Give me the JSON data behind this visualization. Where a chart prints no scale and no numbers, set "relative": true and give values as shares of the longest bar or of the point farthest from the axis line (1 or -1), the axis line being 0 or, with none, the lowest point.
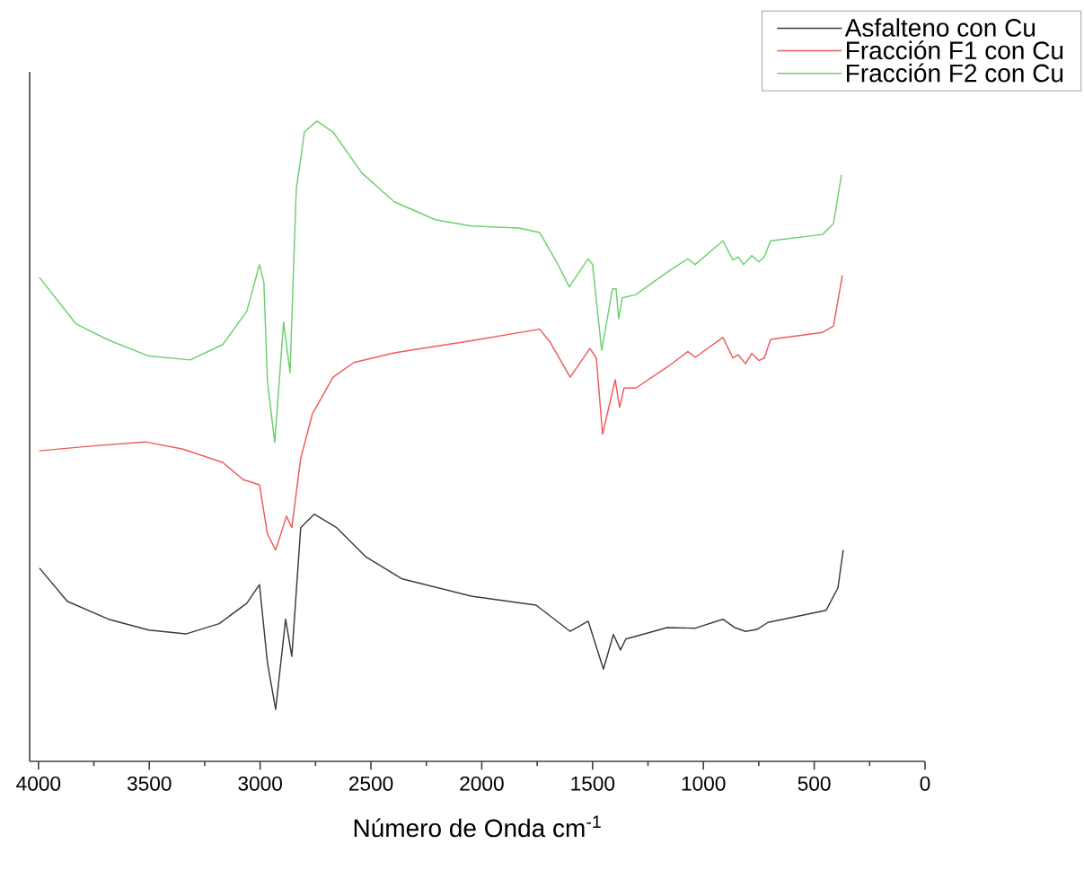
{
  "chart_data": {
    "type": "line",
    "xlabel": "Número de Onda cm$^{-1}$",
    "relative": true,
    "xlim": [
      4040,
      0
    ],
    "xticks": [
      4000,
      3500,
      3000,
      2500,
      2000,
      1500,
      1000,
      500,
      0
    ],
    "legend": "top right",
    "grid": false,
    "marker": "none",
    "line_style": "solid",
    "series": [
      {
        "name": "Asfalteno con Cu",
        "color": "#3c3c3c",
        "x": [
          3996,
          3870,
          3684,
          3502,
          3335,
          3185,
          3060,
          3003,
          2967,
          2930,
          2885,
          2857,
          2817,
          2756,
          2655,
          2525,
          2359,
          2047,
          1755,
          1601,
          1520,
          1451,
          1406,
          1374,
          1350,
          1163,
          1037,
          912,
          859,
          810,
          758,
          709,
          446,
          393,
          369
        ],
        "values": [
          0.302,
          0.25,
          0.222,
          0.205,
          0.199,
          0.215,
          0.247,
          0.276,
          0.154,
          0.081,
          0.222,
          0.164,
          0.365,
          0.386,
          0.365,
          0.32,
          0.285,
          0.258,
          0.244,
          0.203,
          0.219,
          0.144,
          0.198,
          0.174,
          0.191,
          0.209,
          0.208,
          0.222,
          0.209,
          0.203,
          0.206,
          0.217,
          0.236,
          0.271,
          0.33
        ]
      },
      {
        "name": "Fracción F1 con Cu",
        "color": "#f05a5a",
        "x": [
          3996,
          3777,
          3518,
          3352,
          3169,
          3076,
          3003,
          2967,
          2930,
          2881,
          2857,
          2817,
          2764,
          2671,
          2577,
          2395,
          2047,
          1739,
          1694,
          1601,
          1512,
          1483,
          1455,
          1398,
          1378,
          1358,
          1305,
          1163,
          1070,
          1037,
          912,
          867,
          843,
          810,
          782,
          750,
          725,
          697,
          462,
          413,
          373
        ],
        "values": [
          0.485,
          0.492,
          0.499,
          0.488,
          0.467,
          0.44,
          0.432,
          0.355,
          0.33,
          0.383,
          0.365,
          0.473,
          0.543,
          0.6,
          0.623,
          0.638,
          0.657,
          0.675,
          0.656,
          0.6,
          0.645,
          0.63,
          0.511,
          0.596,
          0.553,
          0.583,
          0.583,
          0.616,
          0.64,
          0.631,
          0.662,
          0.63,
          0.635,
          0.621,
          0.637,
          0.626,
          0.63,
          0.659,
          0.67,
          0.68,
          0.759
        ]
      },
      {
        "name": "Fracción F2 con Cu",
        "color": "#6fcf6f",
        "x": [
          3996,
          3830,
          3684,
          3502,
          3315,
          3169,
          3060,
          3003,
          2983,
          2967,
          2934,
          2894,
          2865,
          2837,
          2800,
          2744,
          2671,
          2541,
          2395,
          2209,
          2047,
          1832,
          1739,
          1662,
          1605,
          1520,
          1500,
          1459,
          1410,
          1394,
          1382,
          1366,
          1305,
          1163,
          1070,
          1037,
          912,
          867,
          843,
          819,
          782,
          750,
          725,
          697,
          462,
          413,
          377
        ],
        "values": [
          0.756,
          0.683,
          0.658,
          0.633,
          0.627,
          0.651,
          0.703,
          0.776,
          0.748,
          0.593,
          0.498,
          0.686,
          0.607,
          0.893,
          0.983,
          1.0,
          0.983,
          0.919,
          0.874,
          0.846,
          0.836,
          0.833,
          0.826,
          0.78,
          0.741,
          0.785,
          0.776,
          0.642,
          0.738,
          0.738,
          0.691,
          0.724,
          0.729,
          0.764,
          0.785,
          0.776,
          0.813,
          0.783,
          0.788,
          0.776,
          0.79,
          0.78,
          0.788,
          0.813,
          0.823,
          0.84,
          0.916
        ]
      }
    ]
  }
}
